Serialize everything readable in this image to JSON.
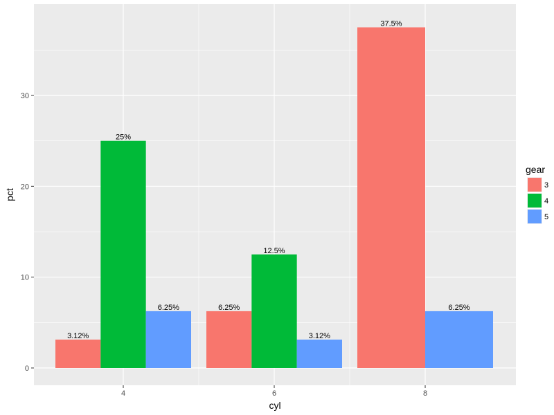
{
  "chart_data": {
    "type": "bar",
    "xlabel": "cyl",
    "ylabel": "pct",
    "categories": [
      "4",
      "6",
      "8"
    ],
    "ylim": [
      0,
      39.4
    ],
    "yticks": [
      0,
      10,
      20,
      30
    ],
    "grid": true,
    "legend": {
      "title": "gear",
      "position": "right",
      "entries": [
        "3",
        "4",
        "5"
      ]
    },
    "series": [
      {
        "name": "3",
        "color": "#F8766D",
        "values": [
          3.125,
          6.25,
          37.5
        ],
        "labels": [
          "3.12%",
          "6.25%",
          "37.5%"
        ]
      },
      {
        "name": "4",
        "color": "#00BA38",
        "values": [
          25,
          12.5,
          null
        ],
        "labels": [
          "25%",
          "12.5%",
          null
        ]
      },
      {
        "name": "5",
        "color": "#619CFF",
        "values": [
          6.25,
          3.125,
          6.25
        ],
        "labels": [
          "6.25%",
          "3.12%",
          "6.25%"
        ]
      }
    ],
    "panel_background": "#EBEBEB",
    "grid_color": "#FFFFFF"
  }
}
